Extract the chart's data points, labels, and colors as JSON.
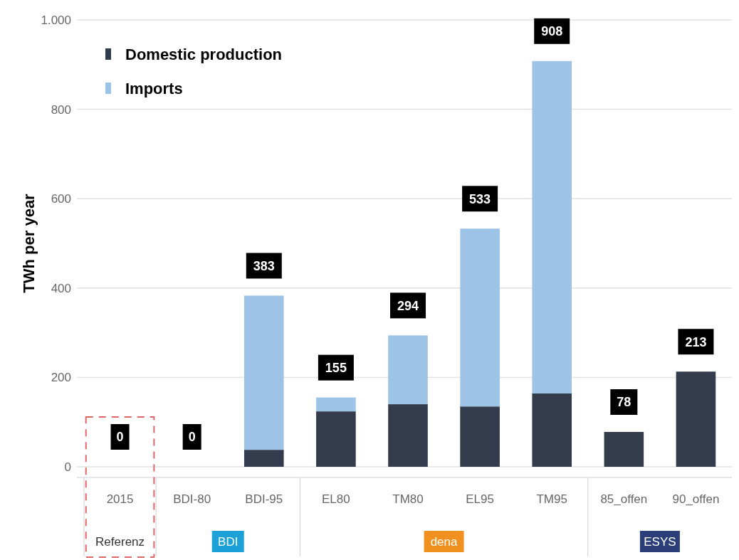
{
  "chart_data": {
    "type": "bar",
    "ylabel": "TWh per year",
    "categories": [
      "2015",
      "BDI-80",
      "BDI-95",
      "EL80",
      "TM80",
      "EL95",
      "TM95",
      "85_offen",
      "90_offen"
    ],
    "series": [
      {
        "name": "Domestic production",
        "color": "#323c4c",
        "values": [
          0,
          0,
          38,
          124,
          140,
          135,
          164,
          78,
          213
        ]
      },
      {
        "name": "Imports",
        "color": "#9dc3e6",
        "values": [
          0,
          0,
          345,
          31,
          154,
          398,
          744,
          0,
          0
        ]
      }
    ],
    "stacked": true,
    "totals": [
      "0",
      "0",
      "383",
      "155",
      "294",
      "533",
      "908",
      "78",
      "213"
    ],
    "ylim": [
      0,
      1000
    ],
    "yticks": [
      0,
      200,
      400,
      600,
      800,
      {
        "value": 1000,
        "label": "1.000"
      }
    ],
    "grid": "y",
    "legend": "top left",
    "annotations": [
      "Referenz",
      "BDI",
      "dena",
      "ESYS"
    ]
  }
}
